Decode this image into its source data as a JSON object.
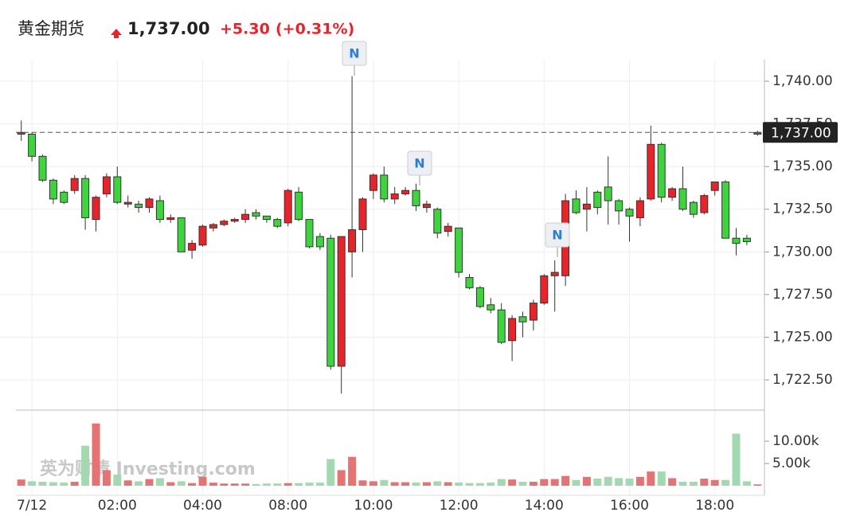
{
  "chart_data": [
    {
      "type": "candlestick",
      "title": "黄金期货",
      "price": {
        "value": 1737,
        "label": "1,737.00"
      },
      "change": {
        "value": 5.3,
        "label": "+5.30"
      },
      "change_pct": {
        "value": 0.31,
        "label": "(+0.31%)"
      },
      "open": [
        1736.9,
        1736.9,
        1735.6,
        1734.2,
        1733.5,
        1733.6,
        1734.3,
        1731.9,
        1733.4,
        1734.4,
        1732.8,
        1732.8,
        1732.6,
        1733.0,
        1731.9,
        1732.0,
        1730.1,
        1730.4,
        1731.4,
        1731.6,
        1731.8,
        1731.9,
        1732.3,
        1732.1,
        1731.9,
        1731.7,
        1733.5,
        1731.9,
        1730.9,
        1730.8,
        1723.3,
        1730.0,
        1731.3,
        1733.6,
        1734.5,
        1733.1,
        1733.4,
        1733.6,
        1732.6,
        1732.5,
        1731.2,
        1731.4,
        1728.5,
        1727.9,
        1726.9,
        1726.6,
        1724.8,
        1726.2,
        1726.0,
        1727.0,
        1728.6,
        1728.6,
        1733.1,
        1732.5,
        1733.5,
        1733.8,
        1733.0,
        1732.5,
        1732.0,
        1733.1,
        1736.3,
        1733.2,
        1733.7,
        1732.9,
        1732.3,
        1733.6,
        1734.1,
        1730.8,
        1730.8,
        1736.9
      ],
      "high": [
        1737.7,
        1737.0,
        1735.7,
        1734.3,
        1733.6,
        1734.5,
        1734.5,
        1733.3,
        1734.6,
        1735.0,
        1733.3,
        1733.0,
        1733.2,
        1733.3,
        1732.2,
        1732.0,
        1730.7,
        1731.6,
        1731.7,
        1731.9,
        1732.0,
        1732.5,
        1732.5,
        1732.1,
        1732.0,
        1733.7,
        1733.8,
        1731.9,
        1731.1,
        1731.0,
        1730.9,
        1740.3,
        1733.2,
        1734.6,
        1735.0,
        1733.8,
        1733.8,
        1734.0,
        1733.0,
        1732.6,
        1731.7,
        1731.4,
        1728.7,
        1728.0,
        1727.3,
        1727.0,
        1726.3,
        1726.5,
        1727.2,
        1728.7,
        1729.5,
        1733.4,
        1733.6,
        1733.8,
        1733.6,
        1735.6,
        1733.1,
        1732.6,
        1733.2,
        1737.4,
        1736.4,
        1733.8,
        1735.0,
        1733.0,
        1733.4,
        1734.1,
        1734.2,
        1731.4,
        1731.0,
        1737.1
      ],
      "low": [
        1736.5,
        1735.3,
        1734.1,
        1732.8,
        1732.8,
        1733.4,
        1731.3,
        1731.2,
        1733.2,
        1732.8,
        1732.6,
        1732.3,
        1732.3,
        1731.7,
        1731.7,
        1730.0,
        1729.6,
        1730.3,
        1731.2,
        1731.5,
        1731.7,
        1731.7,
        1731.9,
        1731.7,
        1731.4,
        1731.5,
        1731.8,
        1730.2,
        1730.1,
        1723.1,
        1721.7,
        1728.5,
        1730.0,
        1733.1,
        1732.9,
        1732.8,
        1733.3,
        1732.4,
        1732.3,
        1730.8,
        1730.9,
        1728.5,
        1727.8,
        1726.7,
        1726.4,
        1724.6,
        1723.6,
        1725.0,
        1725.4,
        1726.9,
        1726.5,
        1728.0,
        1732.2,
        1731.2,
        1732.2,
        1731.6,
        1731.6,
        1730.6,
        1731.5,
        1733.0,
        1732.9,
        1733.0,
        1732.4,
        1732.0,
        1732.2,
        1733.3,
        1730.8,
        1729.8,
        1730.4,
        1736.8
      ],
      "close": [
        1737.0,
        1735.6,
        1734.2,
        1733.1,
        1732.9,
        1734.3,
        1732.0,
        1733.2,
        1734.4,
        1732.9,
        1732.9,
        1732.6,
        1733.1,
        1731.9,
        1732.0,
        1730.0,
        1730.5,
        1731.5,
        1731.6,
        1731.8,
        1731.9,
        1732.2,
        1732.1,
        1731.9,
        1731.5,
        1733.6,
        1731.9,
        1730.3,
        1730.3,
        1723.3,
        1730.9,
        1731.3,
        1733.1,
        1734.5,
        1733.1,
        1733.4,
        1733.6,
        1732.7,
        1732.8,
        1731.1,
        1731.5,
        1728.8,
        1727.9,
        1726.8,
        1726.6,
        1724.7,
        1726.1,
        1725.9,
        1727.0,
        1728.6,
        1728.8,
        1733.0,
        1732.3,
        1732.8,
        1732.6,
        1733.0,
        1732.4,
        1732.1,
        1733.0,
        1736.3,
        1733.2,
        1733.7,
        1732.5,
        1732.2,
        1733.3,
        1734.1,
        1730.8,
        1730.5,
        1730.6,
        1737.0
      ],
      "up_color": "#e8242a",
      "down_color": "#3ed43e",
      "ylim": [
        1720.73,
        1741.26
      ],
      "yticks": [
        {
          "value": 1722.5,
          "label": "1,722.50"
        },
        {
          "value": 1725,
          "label": "1,725.00"
        },
        {
          "value": 1727.5,
          "label": "1,727.50"
        },
        {
          "value": 1730,
          "label": "1,730.00"
        },
        {
          "value": 1732.5,
          "label": "1,732.50"
        },
        {
          "value": 1735,
          "label": "1,735.00"
        },
        {
          "value": 1737.5,
          "label": "1,737.50"
        },
        {
          "value": 1740,
          "label": "1,740.00"
        }
      ],
      "news": [
        "N",
        "N",
        "N"
      ],
      "grid": true
    },
    {
      "type": "bar",
      "categories": [
        null,
        "7/12",
        null,
        null,
        null,
        null,
        null,
        null,
        null,
        "02:00",
        null,
        null,
        null,
        null,
        null,
        null,
        null,
        "04:00",
        null,
        null,
        null,
        null,
        null,
        null,
        null,
        "08:00",
        null,
        null,
        null,
        null,
        null,
        null,
        null,
        "10:00",
        null,
        null,
        null,
        null,
        null,
        null,
        null,
        "12:00",
        null,
        null,
        null,
        null,
        null,
        null,
        null,
        "14:00",
        null,
        null,
        null,
        null,
        null,
        null,
        null,
        "16:00",
        null,
        null,
        null,
        null,
        null,
        null,
        null,
        "18:00",
        null,
        null,
        null,
        null
      ],
      "values": [
        1400,
        1000,
        900,
        800,
        700,
        900,
        9000,
        14000,
        3500,
        2500,
        1200,
        1000,
        1500,
        1700,
        800,
        1000,
        600,
        2000,
        700,
        500,
        500,
        500,
        400,
        500,
        500,
        600,
        600,
        700,
        700,
        6000,
        3500,
        6500,
        1200,
        1000,
        1300,
        800,
        800,
        700,
        800,
        1000,
        800,
        700,
        600,
        600,
        700,
        1500,
        1400,
        900,
        900,
        1500,
        1500,
        2200,
        1300,
        2000,
        1600,
        2000,
        1700,
        1600,
        2000,
        3200,
        3200,
        1700,
        900,
        900,
        1600,
        1300,
        1300,
        11700,
        1000,
        300
      ],
      "up_color": "#e57373",
      "down_color": "#a3d9b1",
      "ylim": [
        0,
        17000
      ],
      "yticks": [
        {
          "value": 5000,
          "label": "5.00k"
        },
        {
          "value": 10000,
          "label": "10.00k"
        }
      ],
      "watermark": "英为财情 Investing.com"
    }
  ]
}
